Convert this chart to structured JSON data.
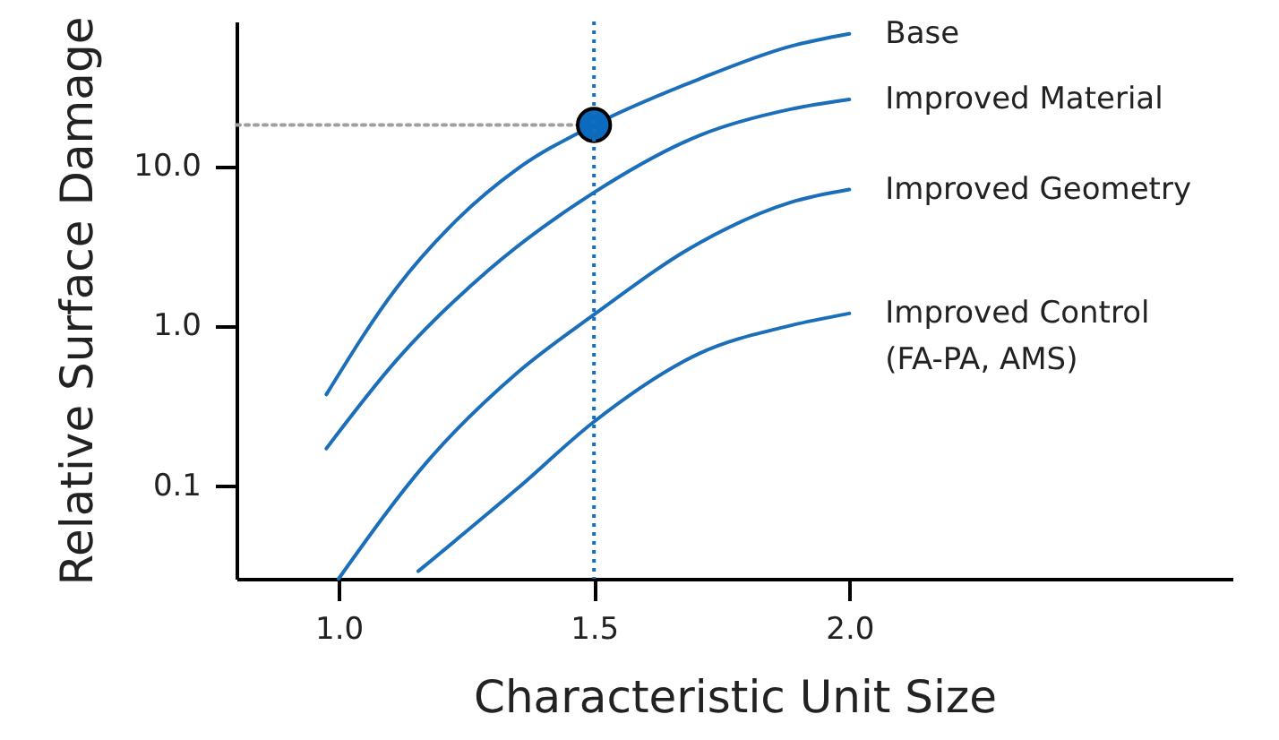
{
  "chart_data": {
    "type": "line",
    "xlabel": "Characteristic Unit Size",
    "ylabel": "Relative Surface Damage",
    "log": "y",
    "grid": false,
    "xlim": [
      0.8,
      2.75
    ],
    "xticks": [
      {
        "value": 1,
        "label": "1.0"
      },
      {
        "value": 1.5,
        "label": "1.5"
      },
      {
        "value": 2,
        "label": "2.0"
      }
    ],
    "ylim": [
      0.026,
      80
    ],
    "yticks": [
      {
        "value": 0.1,
        "label": "0.1"
      },
      {
        "value": 1,
        "label": "1.0"
      },
      {
        "value": 10,
        "label": "10.0"
      }
    ],
    "ref_lines": [
      {
        "axis": "x",
        "value": 1.5,
        "color": "#1b6fba",
        "line_style": "dotted"
      }
    ],
    "series": [
      {
        "name": "Base",
        "color": "#1b6fba",
        "x": [
          0.976,
          1.114,
          1.232,
          1.351,
          1.5,
          1.707,
          1.885,
          2.0
        ],
        "values": [
          0.37,
          1.73,
          4.6,
          9.6,
          18,
          35,
          56,
          67
        ]
      },
      {
        "name": "Improved Material",
        "color": "#1b6fba",
        "x": [
          0.976,
          1.114,
          1.292,
          1.5,
          1.707,
          1.885,
          2.0
        ],
        "values": [
          0.17,
          0.61,
          2.2,
          6.8,
          15.5,
          22.6,
          26
        ]
      },
      {
        "name": "Improved Geometry",
        "color": "#1b6fba",
        "x": [
          1.0,
          1.173,
          1.351,
          1.5,
          1.707,
          1.885,
          2.0
        ],
        "values": [
          0.026,
          0.14,
          0.51,
          1.17,
          3.3,
          5.9,
          7.1
        ]
      },
      {
        "name": "Improved Control\n(FA-PA, AMS)",
        "color": "#1b6fba",
        "x": [
          1.156,
          1.351,
          1.5,
          1.707,
          1.885,
          2.0
        ],
        "values": [
          0.029,
          0.096,
          0.25,
          0.67,
          1.0,
          1.19
        ]
      },
      {
        "type": "line",
        "color": "#a0a0a0",
        "line_style": "dotted",
        "x": [
          0.8,
          1.5
        ],
        "values": [
          18,
          18
        ]
      },
      {
        "type": "scatter",
        "color": "#0b6cbf",
        "marker": "circle",
        "x": [
          1.5
        ],
        "values": [
          18
        ]
      }
    ]
  }
}
